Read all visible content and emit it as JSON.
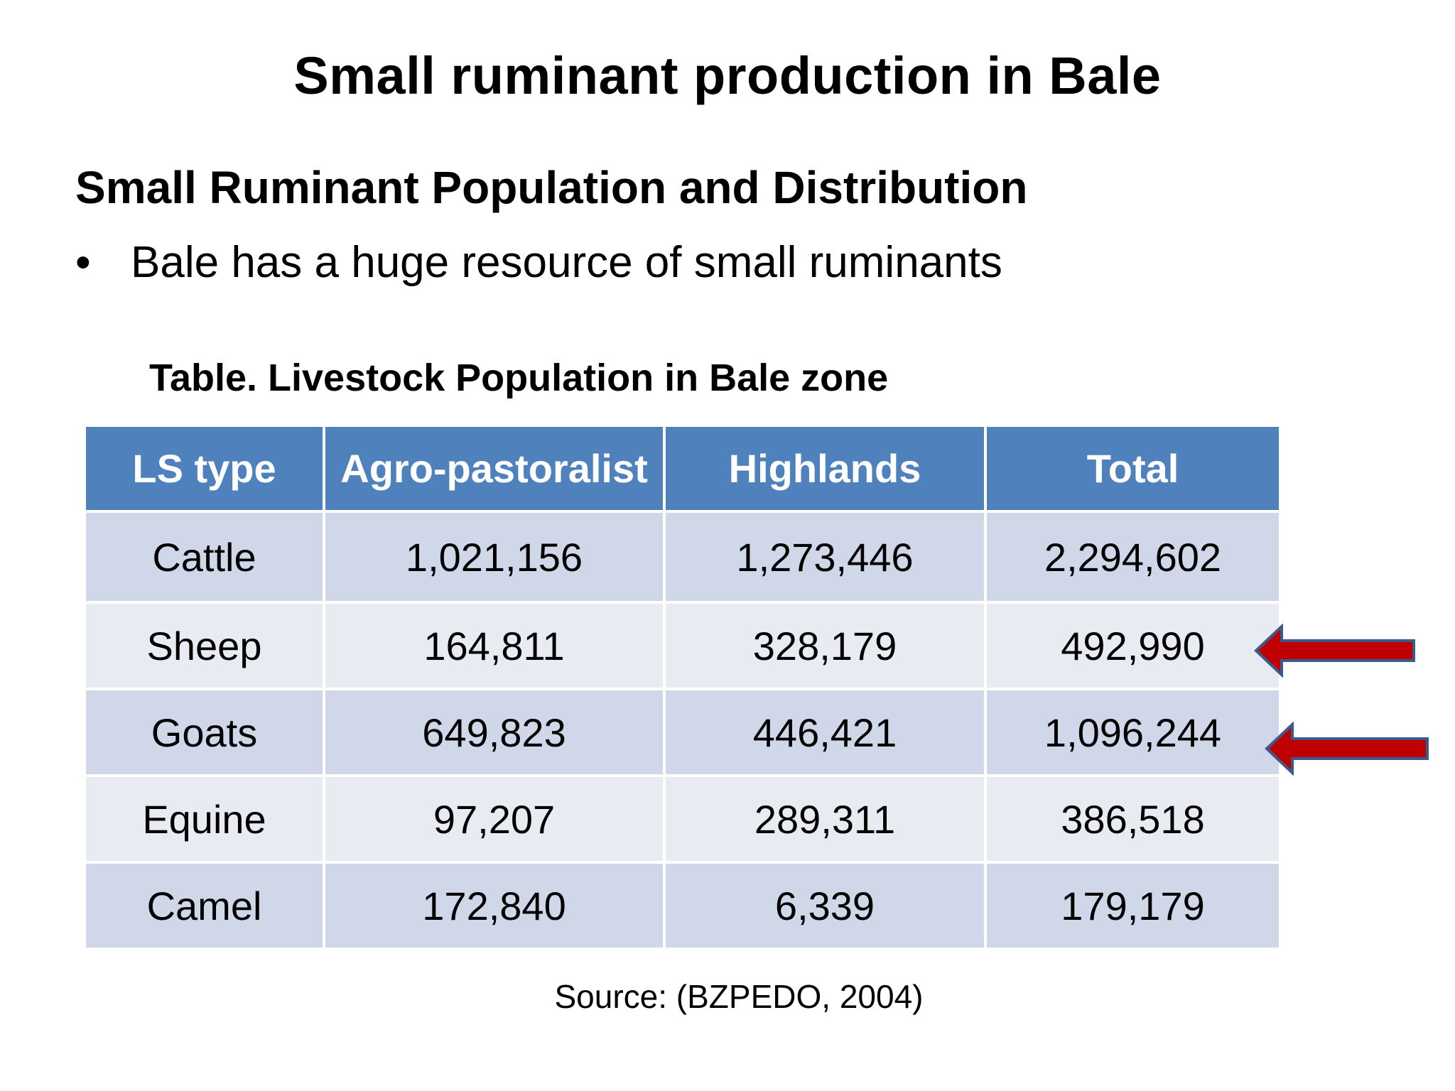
{
  "slide": {
    "title": "Small ruminant production in Bale",
    "subtitle": "Small Ruminant Population and Distribution",
    "bullet_symbol": "•",
    "bullet": "Bale has a huge resource of small ruminants",
    "table_caption": "Table. Livestock Population in Bale zone",
    "source": "Source: (BZPEDO, 2004)"
  },
  "table": {
    "headers": [
      "LS type",
      "Agro-pastoralist",
      "Highlands",
      "Total"
    ],
    "rows": [
      [
        "Cattle",
        "1,021,156",
        "1,273,446",
        "2,294,602"
      ],
      [
        "Sheep",
        "164,811",
        "328,179",
        "492,990"
      ],
      [
        "Goats",
        "649,823",
        "446,421",
        "1,096,244"
      ],
      [
        "Equine",
        "97,207",
        "289,311",
        "386,518"
      ],
      [
        "Camel",
        "172,840",
        "6,339",
        "179,179"
      ]
    ]
  },
  "colors": {
    "header_bg": "#4f81bd",
    "row_dark": "#cfd7e8",
    "row_light": "#e9ebf3",
    "arrow_fill": "#c00000",
    "arrow_stroke": "#3b5a8c"
  },
  "annotations": {
    "arrows": [
      {
        "icon": "left-arrow-icon",
        "points_to_row": "Sheep"
      },
      {
        "icon": "left-arrow-icon",
        "points_to_row": "Goats"
      }
    ]
  }
}
